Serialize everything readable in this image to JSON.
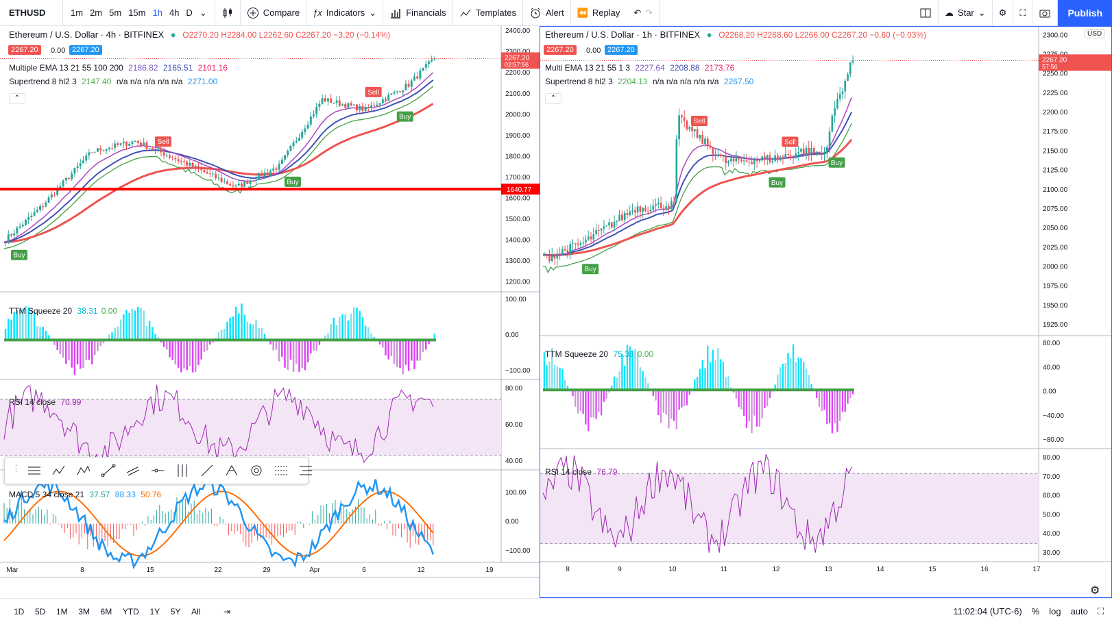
{
  "toolbar": {
    "symbol": "ETHUSD",
    "intervals": [
      "1m",
      "2m",
      "5m",
      "15m",
      "1h",
      "4h",
      "D"
    ],
    "compare": "Compare",
    "indicators": "Indicators",
    "financials": "Financials",
    "templates": "Templates",
    "alert": "Alert",
    "replay": "Replay",
    "star": "Star",
    "publish": "Publish"
  },
  "left": {
    "title": "Ethereum / U.S. Dollar · 4h · BITFINEX",
    "ohlc": "O2270.20 H2284.00 L2262.60 C2267.20 −3.20 (−0.14%)",
    "bid": "2267.20",
    "spread": "0.00",
    "ask": "2267.20",
    "ema_label": "Multiple EMA 13 21 55 100 200",
    "ema_vals": [
      "2186.82",
      "2165.51",
      "2101.16"
    ],
    "st_label": "Supertrend 8 hl2 3",
    "st_vals": "2147.40",
    "st_na": "n/a n/a n/a n/a n/a",
    "st_val2": "2271.00",
    "price_tag": "2267.20",
    "price_time": "02:57:56",
    "hline_tag": "1640.77",
    "price_axis": [
      "2400.00",
      "2300.00",
      "2200.00",
      "2100.00",
      "2000.00",
      "1900.00",
      "1800.00",
      "1700.00",
      "1600.00",
      "1500.00",
      "1400.00",
      "1300.00",
      "1200.00"
    ],
    "ttm_label": "TTM Squeeze 20",
    "ttm_v1": "38.31",
    "ttm_v2": "0.00",
    "ttm_axis": [
      "100.00",
      "0.00",
      "−100.00"
    ],
    "rsi_label": "RSI 14 close",
    "rsi_v": "70.99",
    "rsi_axis": [
      "80.00",
      "60.00",
      "40.00"
    ],
    "macd_label": "MACD 5 34 close 21",
    "macd_vals": [
      "37.57",
      "88.33",
      "50.76"
    ],
    "macd_axis": [
      "100.00",
      "0.00",
      "−100.00"
    ],
    "time_axis": [
      "Mar",
      "8",
      "15",
      "22",
      "29",
      "Apr",
      "6",
      "12",
      "19"
    ],
    "signals": [
      "Buy",
      "Sell",
      "Buy",
      "Sell",
      "Buy"
    ]
  },
  "right": {
    "title": "Ethereum / U.S. Dollar · 1h · BITFINEX",
    "ohlc": "O2268.20 H2268.60 L2266.00 C2267.20 −0.60 (−0.03%)",
    "bid": "2267.20",
    "spread": "0.00",
    "ask": "2267.20",
    "ema_label": "Multi EMA 13 21 55 1 3",
    "ema_vals": [
      "2227.64",
      "2208.88",
      "2173.76"
    ],
    "st_label": "Supertrend 8 hl2 3",
    "st_vals": "2204.13",
    "st_na": "n/a n/a n/a n/a n/a",
    "st_val2": "2267.50",
    "price_tag": "2267.20",
    "price_time": "57:56",
    "usd": "USD",
    "price_axis": [
      "2300.00",
      "2275.00",
      "2250.00",
      "2225.00",
      "2200.00",
      "2175.00",
      "2150.00",
      "2125.00",
      "2100.00",
      "2075.00",
      "2050.00",
      "2025.00",
      "2000.00",
      "1975.00",
      "1950.00",
      "1925.00"
    ],
    "ttm_label": "TTM Squeeze 20",
    "ttm_v1": "75.36",
    "ttm_v2": "0.00",
    "ttm_axis": [
      "80.00",
      "40.00",
      "0.00",
      "−40.00",
      "−80.00"
    ],
    "rsi_label": "RSI 14 close",
    "rsi_v": "76.79",
    "rsi_axis": [
      "80.00",
      "70.00",
      "60.00",
      "50.00",
      "40.00",
      "30.00"
    ],
    "time_axis": [
      "8",
      "9",
      "10",
      "11",
      "12",
      "13",
      "14",
      "15",
      "16",
      "17"
    ],
    "signals": [
      "Buy",
      "Sell",
      "Buy",
      "Sell",
      "Buy"
    ]
  },
  "bottom": {
    "ranges": [
      "1D",
      "5D",
      "1M",
      "3M",
      "6M",
      "YTD",
      "1Y",
      "5Y",
      "All"
    ],
    "clock": "11:02:04 (UTC-6)",
    "pct": "%",
    "log": "log",
    "auto": "auto"
  },
  "colors": {
    "up": "#26a69a",
    "down": "#ef5350",
    "blue": "#2962ff",
    "ema1": "#7e57c2",
    "ema2": "#3f51b5",
    "ema3": "#ef5350",
    "st": "#4caf50",
    "rsi": "#9c27b0",
    "macd": "#2196f3",
    "signal": "#ff6d00"
  }
}
